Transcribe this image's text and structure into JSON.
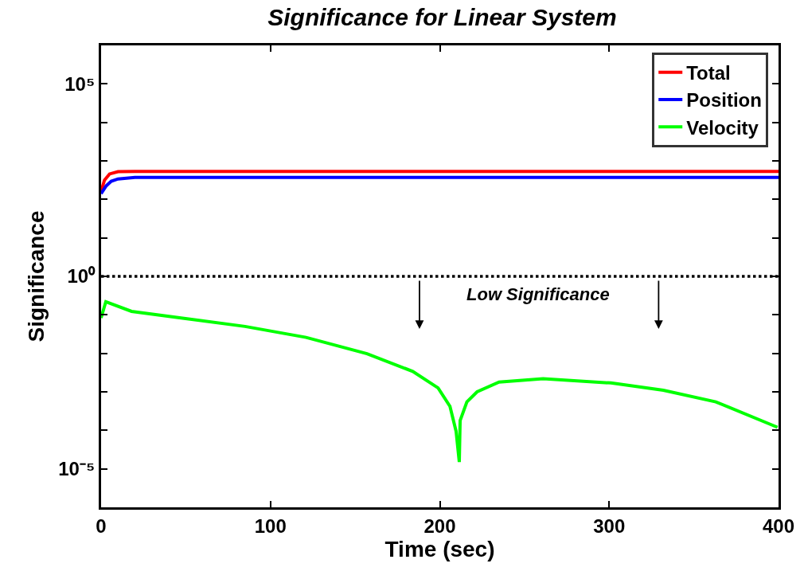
{
  "chart_data": {
    "type": "line",
    "title": "Significance for Linear System",
    "xlabel": "Time (sec)",
    "ylabel": "Significance",
    "log": "y",
    "legend": "top right",
    "line_style": "solid",
    "marker": "none",
    "xlim": [
      0,
      400
    ],
    "xticks": [
      0,
      100,
      200,
      300,
      400
    ],
    "ylim": [
      1e-06,
      1000000.0
    ],
    "yticks": [
      {
        "value": 1e-05,
        "label": "10⁻⁵"
      },
      {
        "value": 0.0001,
        "label": null
      },
      {
        "value": 0.001,
        "label": null
      },
      {
        "value": 0.01,
        "label": null
      },
      {
        "value": 0.1,
        "label": null
      },
      {
        "value": 1,
        "label": "10⁰"
      },
      {
        "value": 10,
        "label": null
      },
      {
        "value": 100,
        "label": null
      },
      {
        "value": 1000,
        "label": null
      },
      {
        "value": 10000,
        "label": null
      },
      {
        "value": 100000,
        "label": "10⁵"
      }
    ],
    "series": [
      {
        "name": "Total",
        "color": "#ff0000",
        "x": [
          0,
          2,
          5,
          10,
          20,
          400
        ],
        "values": [
          160,
          316,
          457,
          525,
          530,
          530
        ]
      },
      {
        "name": "Position",
        "color": "#0000ff",
        "x": [
          0,
          3,
          6,
          10,
          20,
          400
        ],
        "values": [
          140,
          224,
          295,
          339,
          370,
          370
        ]
      },
      {
        "name": "Velocity",
        "color": "#00ff00",
        "x": [
          0,
          2.8,
          18,
          49,
          85,
          121,
          157,
          184,
          199,
          206,
          209.6,
          211.5,
          212,
          216,
          222,
          235,
          261,
          301,
          332,
          363,
          399.4
        ],
        "values": [
          0.083,
          0.22,
          0.123,
          0.081,
          0.05,
          0.026,
          0.0098,
          0.0034,
          0.00126,
          0.00042,
          9.5e-05,
          1.5e-05,
          0.00018,
          0.00055,
          0.001,
          0.0018,
          0.0022,
          0.0017,
          0.0011,
          0.00055,
          0.00012
        ]
      }
    ],
    "ref_lines": [
      {
        "axis": "y",
        "value": 1,
        "color": "#000000",
        "line_style": "dotted"
      }
    ],
    "annotations": [
      "Low Significance"
    ]
  }
}
